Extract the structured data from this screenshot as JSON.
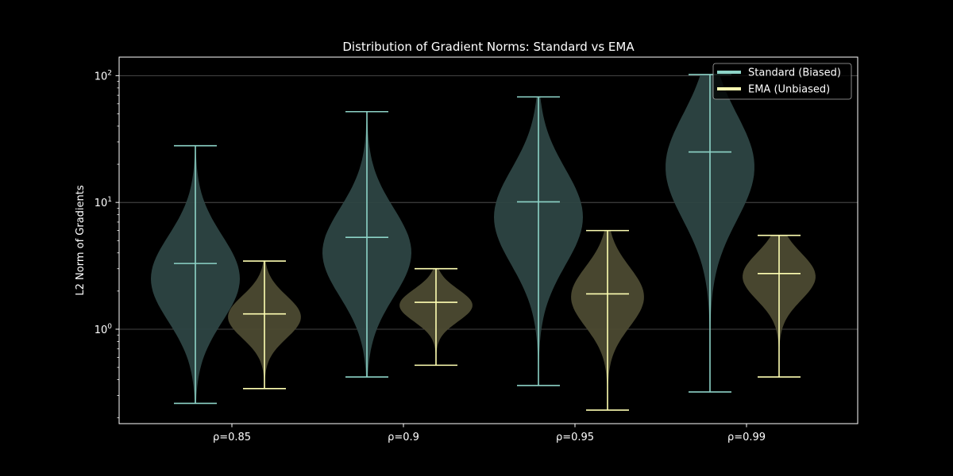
{
  "chart_data": {
    "type": "violin",
    "title": "Distribution of Gradient Norms: Standard vs EMA",
    "xlabel": "",
    "ylabel": "L2 Norm of Gradients",
    "yscale": "log",
    "ylim": [
      0.18,
      140
    ],
    "yticks": [
      {
        "value": 1,
        "base": "10",
        "exp": "0"
      },
      {
        "value": 10,
        "base": "10",
        "exp": "1"
      },
      {
        "value": 100,
        "base": "10",
        "exp": "2"
      }
    ],
    "grid": {
      "y": true,
      "x": false
    },
    "legend_position": "top-right",
    "categories": [
      "ρ=0.85",
      "ρ=0.9",
      "ρ=0.95",
      "ρ=0.99"
    ],
    "series": [
      {
        "name": "Standard (Biased)",
        "color": "#8dd3c7",
        "stats": [
          {
            "min": 0.26,
            "mean": 3.3,
            "max": 28
          },
          {
            "min": 0.42,
            "mean": 5.3,
            "max": 52
          },
          {
            "min": 0.36,
            "mean": 10.1,
            "max": 68
          },
          {
            "min": 0.32,
            "mean": 25,
            "max": 102
          }
        ]
      },
      {
        "name": "EMA (Unbiased)",
        "color": "#ffffb3",
        "stats": [
          {
            "min": 0.34,
            "mean": 1.32,
            "max": 3.45
          },
          {
            "min": 0.52,
            "mean": 1.63,
            "max": 3.0
          },
          {
            "min": 0.23,
            "mean": 1.9,
            "max": 6.0
          },
          {
            "min": 0.42,
            "mean": 2.75,
            "max": 5.5
          }
        ]
      }
    ]
  }
}
